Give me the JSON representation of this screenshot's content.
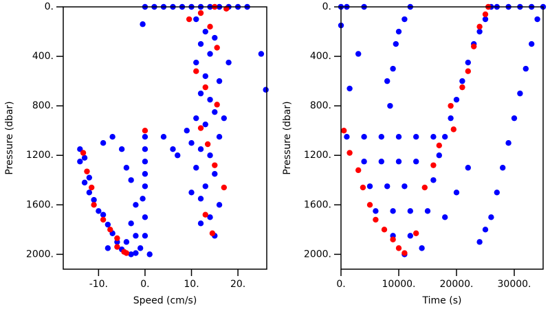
{
  "chart_data": [
    {
      "type": "scatter",
      "xlabel": "Speed (cm/s)",
      "ylabel": "Pressure (dbar)",
      "xlim": [
        -17.6,
        26.2
      ],
      "ylim": [
        0,
        2120
      ],
      "y_inverted": true,
      "xticks": [
        {
          "value": -10,
          "label": "-10."
        },
        {
          "value": 0,
          "label": "0."
        },
        {
          "value": 10,
          "label": "10."
        },
        {
          "value": 20,
          "label": "20."
        }
      ],
      "yticks": [
        {
          "value": 0,
          "label": "0."
        },
        {
          "value": 400,
          "label": "400."
        },
        {
          "value": 800,
          "label": "800."
        },
        {
          "value": 1200,
          "label": "1200."
        },
        {
          "value": 1600,
          "label": "1600."
        },
        {
          "value": 2000,
          "label": "2000."
        }
      ],
      "series": [
        {
          "color": "#0000ff",
          "x": [
            0,
            2,
            4,
            6,
            8,
            10,
            12,
            14,
            16,
            18,
            20,
            22,
            11,
            13,
            15,
            12,
            14,
            11,
            13,
            16,
            12,
            14,
            15,
            11,
            13,
            16,
            12,
            14,
            11,
            15,
            13,
            10,
            12,
            16,
            14,
            12,
            15,
            10,
            17,
            9,
            18,
            25,
            26,
            0,
            0,
            0,
            0,
            0,
            -0.5,
            0,
            0,
            -1,
            1,
            -14,
            -13,
            -14,
            -12,
            -13,
            -12,
            -11,
            -10,
            -9,
            -8,
            -7,
            -6,
            -5,
            -3,
            -2,
            -8,
            -4,
            -9,
            -7,
            -5,
            -4,
            -3,
            -2,
            -3,
            -2,
            4,
            6,
            7,
            -0.5
          ],
          "y": [
            0,
            0,
            0,
            0,
            0,
            0,
            0,
            0,
            0,
            0,
            0,
            0,
            100,
            200,
            250,
            300,
            380,
            450,
            560,
            600,
            700,
            750,
            850,
            900,
            950,
            1050,
            1150,
            1200,
            1300,
            1350,
            1450,
            1500,
            1550,
            1600,
            1700,
            1750,
            1850,
            1100,
            900,
            1000,
            450,
            380,
            670,
            1050,
            1150,
            1250,
            1350,
            1450,
            1550,
            1700,
            1850,
            1950,
            2000,
            1150,
            1220,
            1250,
            1380,
            1420,
            1500,
            1560,
            1650,
            1680,
            1760,
            1830,
            1900,
            1960,
            2000,
            1990,
            1950,
            1900,
            1100,
            1050,
            1150,
            1300,
            1400,
            1600,
            1750,
            1850,
            1050,
            1150,
            1200,
            140
          ]
        },
        {
          "color": "#ff0000",
          "x": [
            -13.3,
            -12.5,
            -11.5,
            -11,
            -9,
            -7.5,
            -6,
            -6,
            -4.5,
            -4,
            0,
            12,
            9.5,
            15,
            17.5,
            14,
            15.5,
            11,
            13,
            15.5,
            12,
            13.5,
            15,
            17,
            13,
            14.5
          ],
          "y": [
            1180,
            1330,
            1460,
            1600,
            1720,
            1800,
            1870,
            1940,
            1980,
            1990,
            1000,
            50,
            100,
            0,
            15,
            160,
            330,
            520,
            650,
            790,
            980,
            1110,
            1280,
            1460,
            1680,
            1830
          ]
        }
      ]
    },
    {
      "type": "scatter",
      "xlabel": "Time (s)",
      "ylabel": "Pressure (dbar)",
      "xlim": [
        0,
        35000
      ],
      "ylim": [
        0,
        2120
      ],
      "y_inverted": true,
      "xticks": [
        {
          "value": 0,
          "label": "0."
        },
        {
          "value": 10000,
          "label": "10000."
        },
        {
          "value": 20000,
          "label": "20000."
        },
        {
          "value": 30000,
          "label": "30000."
        }
      ],
      "yticks": [
        {
          "value": 0,
          "label": "0."
        },
        {
          "value": 400,
          "label": "400."
        },
        {
          "value": 800,
          "label": "800."
        },
        {
          "value": 1200,
          "label": "1200."
        },
        {
          "value": 1600,
          "label": "1600."
        },
        {
          "value": 2000,
          "label": "2000."
        }
      ],
      "series": [
        {
          "color": "#0000ff",
          "x": [
            16000,
            17000,
            18000,
            19000,
            20000,
            21000,
            22000,
            23000,
            24000,
            25000,
            26000,
            27000,
            29000,
            31000,
            33000,
            35000,
            26000,
            27000,
            28000,
            29000,
            30000,
            31000,
            32000,
            33000,
            34000,
            24000,
            25000,
            1000,
            4000,
            7000,
            10000,
            13000,
            16000,
            4000,
            7000,
            10000,
            13000,
            5000,
            8000,
            11000,
            6000,
            9000,
            12000,
            15000,
            9000,
            12000,
            11000,
            14000,
            20000,
            22000,
            18000,
            0,
            1000,
            0,
            1500,
            3000,
            4000,
            8000,
            9000,
            10000,
            11000,
            12000,
            8500,
            9500
          ],
          "y": [
            1400,
            1200,
            1050,
            900,
            750,
            600,
            450,
            300,
            200,
            100,
            0,
            0,
            0,
            0,
            0,
            0,
            1700,
            1500,
            1300,
            1100,
            900,
            700,
            500,
            300,
            100,
            1900,
            1800,
            1050,
            1050,
            1050,
            1050,
            1050,
            1050,
            1250,
            1250,
            1250,
            1250,
            1450,
            1450,
            1450,
            1650,
            1650,
            1650,
            1650,
            1850,
            1850,
            2000,
            1950,
            1500,
            1300,
            1700,
            0,
            0,
            150,
            660,
            380,
            0,
            600,
            500,
            200,
            100,
            0,
            800,
            300
          ]
        },
        {
          "color": "#ff0000",
          "x": [
            500,
            1500,
            3000,
            3800,
            5000,
            6000,
            7500,
            9000,
            10000,
            11000,
            13000,
            14500,
            16000,
            17000,
            19500,
            19000,
            21000,
            22000,
            23000,
            24000,
            25000,
            25500
          ],
          "y": [
            1000,
            1180,
            1320,
            1460,
            1600,
            1720,
            1800,
            1880,
            1950,
            1990,
            1830,
            1460,
            1280,
            1120,
            990,
            800,
            650,
            520,
            320,
            160,
            60,
            0
          ]
        }
      ]
    }
  ]
}
